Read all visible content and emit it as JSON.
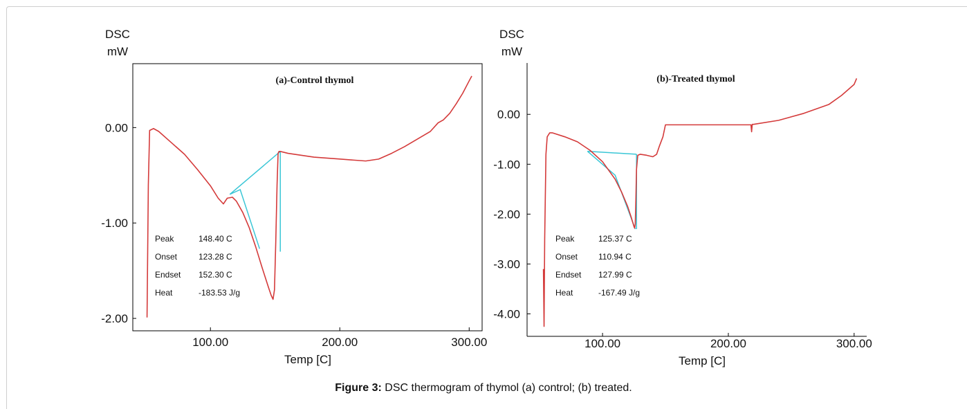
{
  "caption": {
    "label": "Figure 3:",
    "text": " DSC thermogram of thymol (a) control; (b) treated."
  },
  "colors": {
    "curve": "#d43a3a",
    "tangent": "#39c6d6",
    "axis": "#000000"
  },
  "chart_data": [
    {
      "type": "line",
      "title": "(a)-Control thymol",
      "ylabel_line1": "DSC",
      "ylabel_line2": "mW",
      "xlabel": "Temp   [C]",
      "xlim": [
        40,
        310
      ],
      "ylim": [
        -2.13,
        0.67
      ],
      "yticks": [
        0.0,
        -1.0,
        -2.0
      ],
      "ytick_labels": [
        "0.00",
        "-1.00",
        "-2.00"
      ],
      "xticks": [
        100,
        200,
        300
      ],
      "xtick_labels": [
        "100.00",
        "200.00",
        "300.00"
      ],
      "series": [
        {
          "x": [
            51,
            52,
            53,
            56,
            60,
            70,
            80,
            90,
            100,
            106,
            110,
            113,
            117,
            120,
            125,
            130,
            135,
            140,
            145,
            147,
            148.4,
            149.5,
            150.5,
            151.5,
            152.3,
            153,
            154,
            160,
            170,
            180,
            190,
            200,
            210,
            220,
            230,
            240,
            250,
            260,
            270,
            276,
            280,
            285,
            290,
            295,
            300,
            302
          ],
          "y": [
            -1.99,
            -0.6,
            -0.03,
            -0.01,
            -0.04,
            -0.16,
            -0.28,
            -0.44,
            -0.61,
            -0.74,
            -0.8,
            -0.74,
            -0.73,
            -0.77,
            -0.89,
            -1.05,
            -1.25,
            -1.47,
            -1.68,
            -1.76,
            -1.8,
            -1.7,
            -1.2,
            -0.6,
            -0.27,
            -0.25,
            -0.25,
            -0.27,
            -0.29,
            -0.31,
            -0.32,
            -0.33,
            -0.34,
            -0.35,
            -0.33,
            -0.27,
            -0.2,
            -0.12,
            -0.04,
            0.05,
            0.08,
            0.15,
            0.25,
            0.36,
            0.49,
            0.54
          ]
        }
      ],
      "tangent_lines": [
        {
          "x": [
            115,
            154
          ],
          "y": [
            -0.7,
            -0.25
          ]
        },
        {
          "x": [
            115,
            123,
            138
          ],
          "y": [
            -0.7,
            -0.65,
            -1.27
          ]
        },
        {
          "x": [
            154,
            154
          ],
          "y": [
            -0.25,
            -1.3
          ]
        }
      ],
      "annotations": [
        {
          "label": "Peak",
          "value": "148.40 C"
        },
        {
          "label": "Onset",
          "value": "123.28 C"
        },
        {
          "label": "Endset",
          "value": "152.30 C"
        },
        {
          "label": "Heat",
          "value": "-183.53 J/g"
        }
      ]
    },
    {
      "type": "line",
      "title": "(b)-Treated thymol",
      "ylabel_line1": "DSC",
      "ylabel_line2": "mW",
      "xlabel": "Temp   [C]",
      "xlim": [
        40,
        310
      ],
      "ylim": [
        -4.45,
        1.03
      ],
      "yticks": [
        0.0,
        -1.0,
        -2.0,
        -3.0,
        -4.0
      ],
      "ytick_labels": [
        "0.00",
        "-1.00",
        "-2.00",
        "-3.00",
        "-4.00"
      ],
      "xticks": [
        100,
        200,
        300
      ],
      "xtick_labels": [
        "100.00",
        "200.00",
        "300.00"
      ],
      "series": [
        {
          "x": [
            53,
            53.5,
            54,
            55,
            56,
            58,
            60,
            70,
            80,
            90,
            100,
            110,
            115,
            120,
            123,
            125,
            125.5,
            126,
            126.5,
            127,
            128,
            130,
            135,
            140,
            143,
            145,
            148,
            150,
            160,
            180,
            200,
            218,
            218.5,
            219,
            220,
            240,
            260,
            280,
            290,
            300,
            302
          ],
          "y": [
            -3.1,
            -4.25,
            -2.5,
            -0.8,
            -0.45,
            -0.37,
            -0.37,
            -0.45,
            -0.55,
            -0.72,
            -0.95,
            -1.3,
            -1.55,
            -1.85,
            -2.08,
            -2.25,
            -2.28,
            -2.2,
            -1.7,
            -1.1,
            -0.82,
            -0.8,
            -0.82,
            -0.85,
            -0.8,
            -0.65,
            -0.45,
            -0.21,
            -0.21,
            -0.21,
            -0.21,
            -0.21,
            -0.35,
            -0.2,
            -0.2,
            -0.12,
            0.02,
            0.2,
            0.38,
            0.6,
            0.72
          ]
        }
      ],
      "tangent_lines": [
        {
          "x": [
            88,
            127
          ],
          "y": [
            -0.74,
            -0.8
          ]
        },
        {
          "x": [
            88,
            110,
            126
          ],
          "y": [
            -0.74,
            -1.22,
            -2.3
          ]
        },
        {
          "x": [
            127,
            127
          ],
          "y": [
            -0.8,
            -2.3
          ]
        }
      ],
      "annotations": [
        {
          "label": "Peak",
          "value": "125.37 C"
        },
        {
          "label": "Onset",
          "value": "110.94 C"
        },
        {
          "label": "Endset",
          "value": "127.99 C"
        },
        {
          "label": "Heat",
          "value": "-167.49 J/g"
        }
      ]
    }
  ]
}
